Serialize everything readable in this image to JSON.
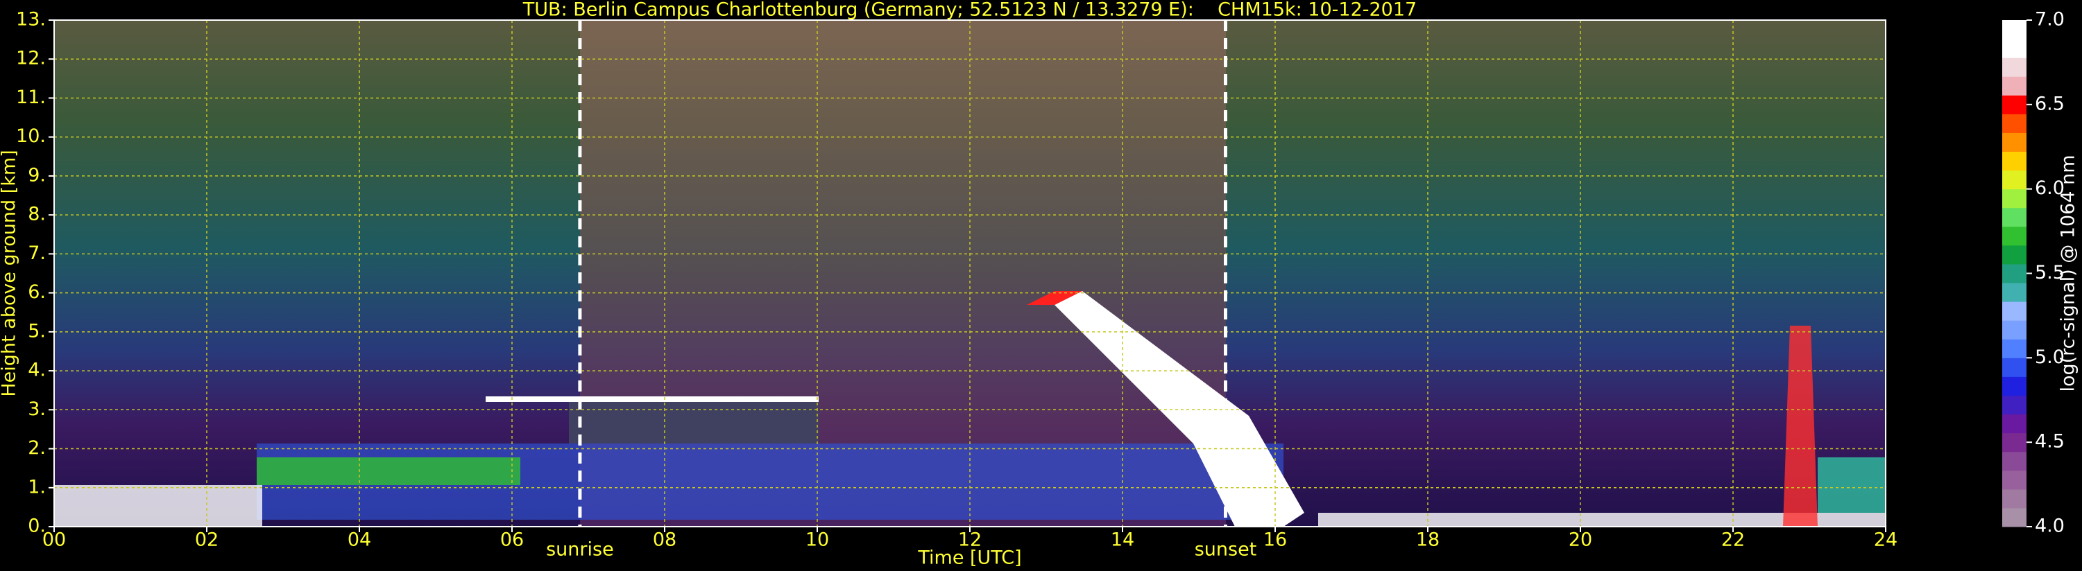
{
  "chart_data": {
    "type": "heatmap",
    "title": "TUB: Berlin Campus Charlottenburg (Germany; 52.5123 N / 13.3279 E):    CHM15k: 10-12-2017",
    "x_label": "Time [UTC]",
    "y_label": "Height above ground [km]",
    "xlim": [
      0,
      24
    ],
    "xticks": [
      {
        "value": 0,
        "label": "00"
      },
      {
        "value": 2,
        "label": "02"
      },
      {
        "value": 4,
        "label": "04"
      },
      {
        "value": 6,
        "label": "06"
      },
      {
        "value": 8,
        "label": "08"
      },
      {
        "value": 10,
        "label": "10"
      },
      {
        "value": 12,
        "label": "12"
      },
      {
        "value": 14,
        "label": "14"
      },
      {
        "value": 16,
        "label": "16"
      },
      {
        "value": 18,
        "label": "18"
      },
      {
        "value": 20,
        "label": "20"
      },
      {
        "value": 22,
        "label": "22"
      },
      {
        "value": 24,
        "label": "24"
      }
    ],
    "ylim": [
      0,
      13
    ],
    "yticks": [
      {
        "value": 0,
        "label": "0."
      },
      {
        "value": 1,
        "label": "1."
      },
      {
        "value": 2,
        "label": "2."
      },
      {
        "value": 3,
        "label": "3."
      },
      {
        "value": 4,
        "label": "4."
      },
      {
        "value": 5,
        "label": "5."
      },
      {
        "value": 6,
        "label": "6."
      },
      {
        "value": 7,
        "label": "7."
      },
      {
        "value": 8,
        "label": "8."
      },
      {
        "value": 9,
        "label": "9."
      },
      {
        "value": 10,
        "label": "10."
      },
      {
        "value": 11,
        "label": "11."
      },
      {
        "value": 12,
        "label": "12."
      },
      {
        "value": 13,
        "label": "13."
      }
    ],
    "grid": true,
    "annotations": [
      {
        "text": "sunrise",
        "x": 6.89
      },
      {
        "text": "sunset",
        "x": 15.35
      }
    ],
    "colorbar": {
      "label": "log(rc-signal) @ 1064 nm",
      "lim": [
        4.0,
        7.0
      ],
      "ticks": [
        {
          "value": 4.0,
          "label": "4.0"
        },
        {
          "value": 4.5,
          "label": "4.5"
        },
        {
          "value": 5.0,
          "label": "5.0"
        },
        {
          "value": 5.5,
          "label": "5.5"
        },
        {
          "value": 6.0,
          "label": "6.0"
        },
        {
          "value": 6.5,
          "label": "6.5"
        },
        {
          "value": 7.0,
          "label": "7.0"
        }
      ],
      "colors": [
        "#a890a8",
        "#a07aa0",
        "#98609c",
        "#8a4a98",
        "#7a2a90",
        "#6a1aa0",
        "#4020c0",
        "#2020e0",
        "#3050f0",
        "#5080ff",
        "#7aa0ff",
        "#9ab8ff",
        "#40b0b0",
        "#20a080",
        "#10a040",
        "#30c030",
        "#60e060",
        "#a0f040",
        "#e0f020",
        "#ffd000",
        "#ff9000",
        "#ff5000",
        "#ff0000",
        "#f0b0b8",
        "#f0d8dc",
        "#ffffff",
        "#ffffff"
      ]
    }
  }
}
